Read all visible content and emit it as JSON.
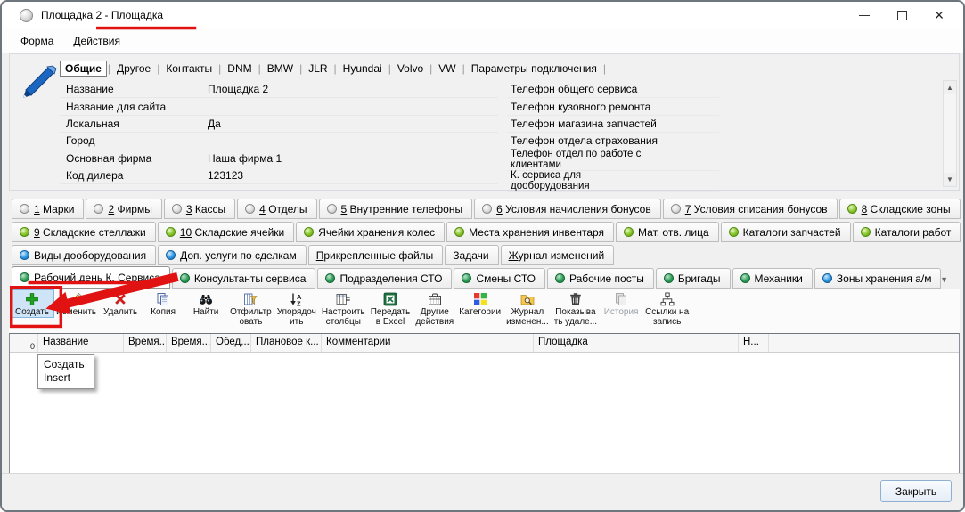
{
  "window": {
    "title": "Площадка 2 - Площадка"
  },
  "icons": {
    "close": "×",
    "arrow_up": "▲",
    "arrow_down": "▼"
  },
  "menu": {
    "items": [
      "Форма",
      "Действия"
    ]
  },
  "form": {
    "tabs": [
      "Общие",
      "Другое",
      "Контакты",
      "DNM",
      "BMW",
      "JLR",
      "Hyundai",
      "Volvo",
      "VW",
      "Параметры подключения"
    ],
    "selected_tab": "Общие",
    "fields_left": [
      {
        "label": "Название",
        "value": "Площадка 2"
      },
      {
        "label": "Название для сайта",
        "value": ""
      },
      {
        "label": "Локальная",
        "value": "Да"
      },
      {
        "label": "Город",
        "value": ""
      },
      {
        "label": "Основная фирма",
        "value": "Наша фирма 1"
      },
      {
        "label": "Код дилера",
        "value": "123123"
      }
    ],
    "fields_right": [
      "Телефон общего сервиса",
      "Телефон кузовного ремонта",
      "Телефон магазина запчастей",
      "Телефон отдела страхования",
      "Телефон отдел по работе с клиентами",
      "К. сервиса для дооборудования"
    ]
  },
  "detail_tabs": {
    "rows": [
      [
        {
          "accel": "1",
          "text": " Марки",
          "icon": "gray"
        },
        {
          "accel": "2",
          "text": " Фирмы",
          "icon": "gray"
        },
        {
          "accel": "3",
          "text": " Кассы",
          "icon": "gray"
        },
        {
          "accel": "4",
          "text": " Отделы",
          "icon": "gray"
        },
        {
          "accel": "5",
          "text": " Внутренние телефоны",
          "icon": "gray"
        },
        {
          "accel": "6",
          "text": " Условия начисления бонусов",
          "icon": "gray"
        },
        {
          "accel": "7",
          "text": " Условия списания бонусов",
          "icon": "gray"
        },
        {
          "accel": "8",
          "text": " Складские зоны",
          "icon": "green"
        }
      ],
      [
        {
          "accel": "9",
          "text": " Складские стеллажи",
          "icon": "green"
        },
        {
          "accel": "10",
          "text": " Складские ячейки",
          "icon": "green"
        },
        {
          "accel": "",
          "text": "Ячейки хранения колес",
          "icon": "green"
        },
        {
          "accel": "",
          "text": "Места хранения инвентаря",
          "icon": "green"
        },
        {
          "accel": "",
          "text": "Мат. отв. лица",
          "icon": "green"
        },
        {
          "accel": "",
          "text": "Каталоги запчастей",
          "icon": "green"
        },
        {
          "accel": "",
          "text": "Каталоги работ",
          "icon": "green"
        }
      ],
      [
        {
          "accel": "",
          "text": "Виды дооборудования",
          "icon": "blue"
        },
        {
          "accel": "",
          "text": "Доп. услуги по сделкам",
          "icon": "blue"
        },
        {
          "accel": "П",
          "text": "рикрепленные файлы",
          "icon": null
        },
        {
          "accel": "",
          "text": "Задачи",
          "icon": null
        },
        {
          "accel": "Ж",
          "text": "урнал изменений",
          "icon": null
        }
      ],
      [
        {
          "accel": "",
          "text": "Рабочий день К. Сервиса",
          "icon": "darkgreen",
          "selected": true
        },
        {
          "accel": "",
          "text": "Консультанты сервиса",
          "icon": "darkgreen"
        },
        {
          "accel": "",
          "text": "Подразделения СТО",
          "icon": "darkgreen"
        },
        {
          "accel": "",
          "text": "Смены СТО",
          "icon": "darkgreen"
        },
        {
          "accel": "",
          "text": "Рабочие посты",
          "icon": "darkgreen"
        },
        {
          "accel": "",
          "text": "Бригады",
          "icon": "darkgreen"
        },
        {
          "accel": "",
          "text": "Механики",
          "icon": "darkgreen"
        },
        {
          "accel": "",
          "text": "Зоны хранения а/м",
          "icon": "blue"
        }
      ]
    ]
  },
  "toolbar": {
    "buttons": [
      {
        "label": "Создать",
        "icon": "plus",
        "highlighted": true
      },
      {
        "label": "Изменить",
        "icon": "pencil"
      },
      {
        "label": "Удалить",
        "icon": "delete"
      },
      {
        "label": "Копия",
        "icon": "copy"
      },
      {
        "label": "Найти",
        "icon": "binoculars"
      },
      {
        "label": "Отфильтр\nовать",
        "icon": "filter"
      },
      {
        "label": "Упорядоч\nить",
        "icon": "sort"
      },
      {
        "label": "Настроить\nстолбцы",
        "icon": "columns"
      },
      {
        "label": "Передать\nв Excel",
        "icon": "excel"
      },
      {
        "label": "Другие\nдействия",
        "icon": "actions"
      },
      {
        "label": "Категории",
        "icon": "categories"
      },
      {
        "label": "Журнал\nизменен...",
        "icon": "journal"
      },
      {
        "label": "Показыва\nть удале...",
        "icon": "trash"
      },
      {
        "label": "История",
        "icon": "history",
        "disabled": true
      },
      {
        "label": "Ссылки на\nзапись",
        "icon": "links"
      }
    ]
  },
  "grid": {
    "row_count": "0",
    "columns": [
      "",
      "Название",
      "Время...",
      "Время...",
      "Обед,...",
      "Плановое к...",
      "Комментарии",
      "Площадка",
      "Н..."
    ]
  },
  "tooltip": {
    "title": "Создать",
    "shortcut": "Insert"
  },
  "footer": {
    "close_label": "Закрыть"
  },
  "colors": {
    "annotation_red": "#e01212",
    "tab_green": "#86c42a",
    "tab_dark_green": "#2f9d59",
    "tab_blue": "#2f96e0",
    "highlight_blue": "#cfe4f7"
  }
}
